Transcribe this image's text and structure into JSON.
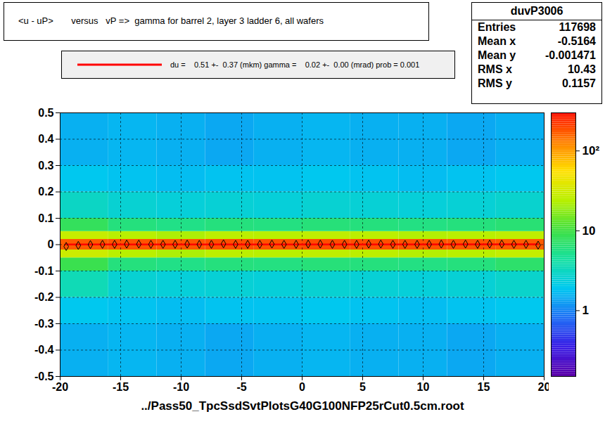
{
  "chart_data": {
    "type": "heatmap",
    "title": "<u - uP>       versus   vP =>  gamma for barrel 2, layer 3 ladder 6, all wafers",
    "x_label": "../Pass50_TpcSsdSvtPlotsG40G100NFP25rCut0.5cm.root",
    "xlim": [
      -20,
      20
    ],
    "xticks": [
      -20,
      -15,
      -10,
      -5,
      0,
      5,
      10,
      15,
      20
    ],
    "ylim": [
      -0.5,
      0.5
    ],
    "yticks": [
      -0.5,
      -0.4,
      -0.3,
      -0.2,
      -0.1,
      0,
      0.1,
      0.2,
      0.3,
      0.4,
      0.5
    ],
    "grid": true,
    "stats": {
      "name": "duvP3006",
      "rows": [
        {
          "label": "Entries",
          "value": 117698
        },
        {
          "label": "Mean x",
          "value": -0.5164
        },
        {
          "label": "Mean y",
          "value": -0.001471
        },
        {
          "label": "RMS x",
          "value": 10.43
        },
        {
          "label": "RMS y",
          "value": 0.1157
        }
      ]
    },
    "cells": {
      "x_edges": [
        -20,
        -16,
        -12,
        -8,
        -4,
        0,
        4,
        8,
        12,
        16,
        20
      ],
      "y_edges": [
        -0.5,
        -0.3,
        -0.2,
        -0.1,
        -0.05,
        -0.02,
        0.02,
        0.05,
        0.1,
        0.2,
        0.3,
        0.5
      ],
      "values": [
        [
          1.5,
          1.6,
          1.5,
          1.4,
          1.5,
          1.6,
          1.5,
          1.5,
          1.4,
          1.5
        ],
        [
          1.9,
          1.8,
          1.7,
          1.8,
          1.8,
          1.9,
          1.8,
          1.7,
          1.8,
          1.9
        ],
        [
          3.5,
          2.6,
          2.4,
          2.5,
          2.4,
          2.6,
          2.5,
          2.4,
          2.5,
          2.8
        ],
        [
          9,
          6,
          5.5,
          6,
          5.8,
          6.2,
          6,
          5.7,
          6,
          7
        ],
        [
          30,
          24,
          22,
          25,
          24,
          26,
          25,
          23,
          24,
          27
        ],
        [
          170,
          180,
          175,
          185,
          180,
          190,
          185,
          180,
          175,
          170
        ],
        [
          28,
          24,
          22,
          25,
          24,
          26,
          25,
          23,
          24,
          26
        ],
        [
          8,
          6,
          5.5,
          6,
          5.8,
          6.2,
          6,
          5.7,
          6,
          6.5
        ],
        [
          3,
          2.6,
          2.4,
          2.5,
          2.4,
          2.6,
          2.5,
          2.4,
          2.5,
          2.7
        ],
        [
          1.9,
          1.8,
          1.7,
          1.8,
          1.8,
          1.9,
          1.8,
          1.7,
          1.8,
          1.9
        ],
        [
          1.5,
          1.6,
          1.5,
          1.4,
          1.5,
          1.6,
          1.5,
          1.5,
          1.4,
          1.5
        ]
      ]
    },
    "colorbar": {
      "log": true,
      "zlim": [
        0.15,
        300
      ],
      "ticks": [
        1,
        10,
        {
          "value": 100,
          "label": "10²"
        }
      ]
    },
    "profile": {
      "marker": "diamond",
      "color": "#000000",
      "x": [
        -19.5,
        -18.5,
        -17.5,
        -16.5,
        -15.5,
        -14.5,
        -13.5,
        -12.5,
        -11.5,
        -10.5,
        -9.5,
        -8.5,
        -7.5,
        -6.5,
        -5.5,
        -4.5,
        -3.5,
        -2.5,
        -1.5,
        -0.5,
        0.5,
        1.5,
        2.5,
        3.5,
        4.5,
        5.5,
        6.5,
        7.5,
        8.5,
        9.5,
        10.5,
        11.5,
        12.5,
        13.5,
        14.5,
        15.5,
        16.5,
        17.5,
        18.5,
        19.5
      ],
      "y": [
        -0.007,
        -0.003,
        0,
        0.001,
        0.001,
        0.002,
        0.002,
        0.001,
        0.001,
        0.001,
        0.002,
        0.001,
        0.001,
        0.003,
        0.001,
        0.001,
        0.001,
        0.002,
        0.001,
        0.001,
        0.002,
        0.002,
        0.001,
        0.001,
        0.001,
        0.002,
        0.002,
        0.001,
        0.001,
        0.001,
        0.001,
        0.002,
        0.001,
        0.002,
        0.001,
        0.002,
        0.002,
        0.001,
        0.001,
        -0.002
      ]
    },
    "fit": {
      "label": "du =    0.51 +-  0.37 (mkm) gamma =    0.02 +-  0.00 (mrad) prob = 0.001",
      "color": "#ff0000",
      "x": [
        -19.5,
        19.5
      ],
      "y": [
        0.0005,
        0.0012
      ]
    }
  }
}
